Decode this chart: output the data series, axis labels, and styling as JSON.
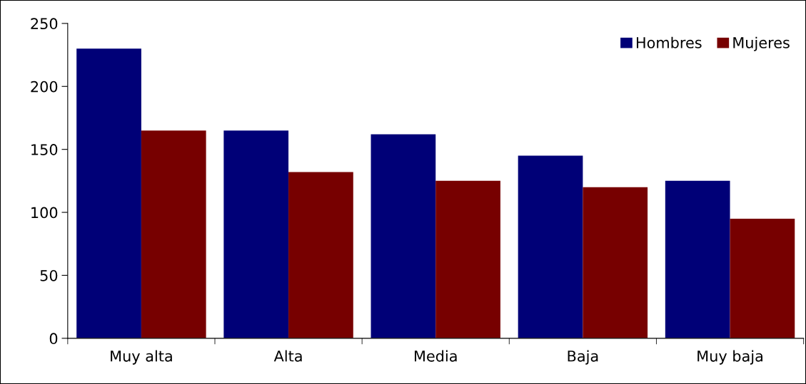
{
  "chart_data": {
    "type": "bar",
    "categories": [
      "Muy alta",
      "Alta",
      "Media",
      "Baja",
      "Muy baja"
    ],
    "series": [
      {
        "name": "Hombres",
        "color": "#000077",
        "values": [
          230,
          165,
          162,
          145,
          125
        ]
      },
      {
        "name": "Mujeres",
        "color": "#770000",
        "values": [
          165,
          132,
          125,
          120,
          95
        ]
      }
    ],
    "ylim": [
      0,
      250
    ],
    "yticks": [
      0,
      50,
      100,
      150,
      200,
      250
    ],
    "legend": "top right"
  }
}
